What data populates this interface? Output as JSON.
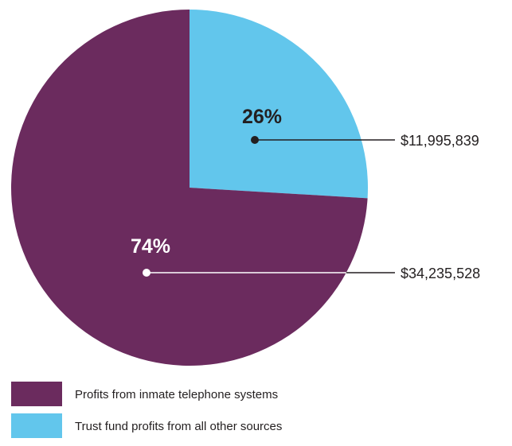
{
  "chart_data": {
    "type": "pie",
    "title": "",
    "slices": [
      {
        "name": "Trust fund profits from all other sources",
        "value": 11995839,
        "value_label": "$11,995,839",
        "percent_label": "26%",
        "color": "#62c6ec",
        "percent_label_color": "#231f20"
      },
      {
        "name": "Profits from inmate telephone systems",
        "value": 34235528,
        "value_label": "$34,235,528",
        "percent_label": "74%",
        "color": "#6b2b5e",
        "percent_label_color": "#ffffff"
      }
    ],
    "start": "12 o'clock",
    "direction": "clockwise",
    "legend": {
      "placement": "bottom-left",
      "items": [
        {
          "label": "Profits from inmate telephone systems",
          "color": "#6b2b5e"
        },
        {
          "label": "Trust fund profits from all other sources",
          "color": "#62c6ec"
        }
      ]
    },
    "colors": {
      "leader_line_dark": "#231f20",
      "leader_line_light": "#ffffff"
    }
  }
}
